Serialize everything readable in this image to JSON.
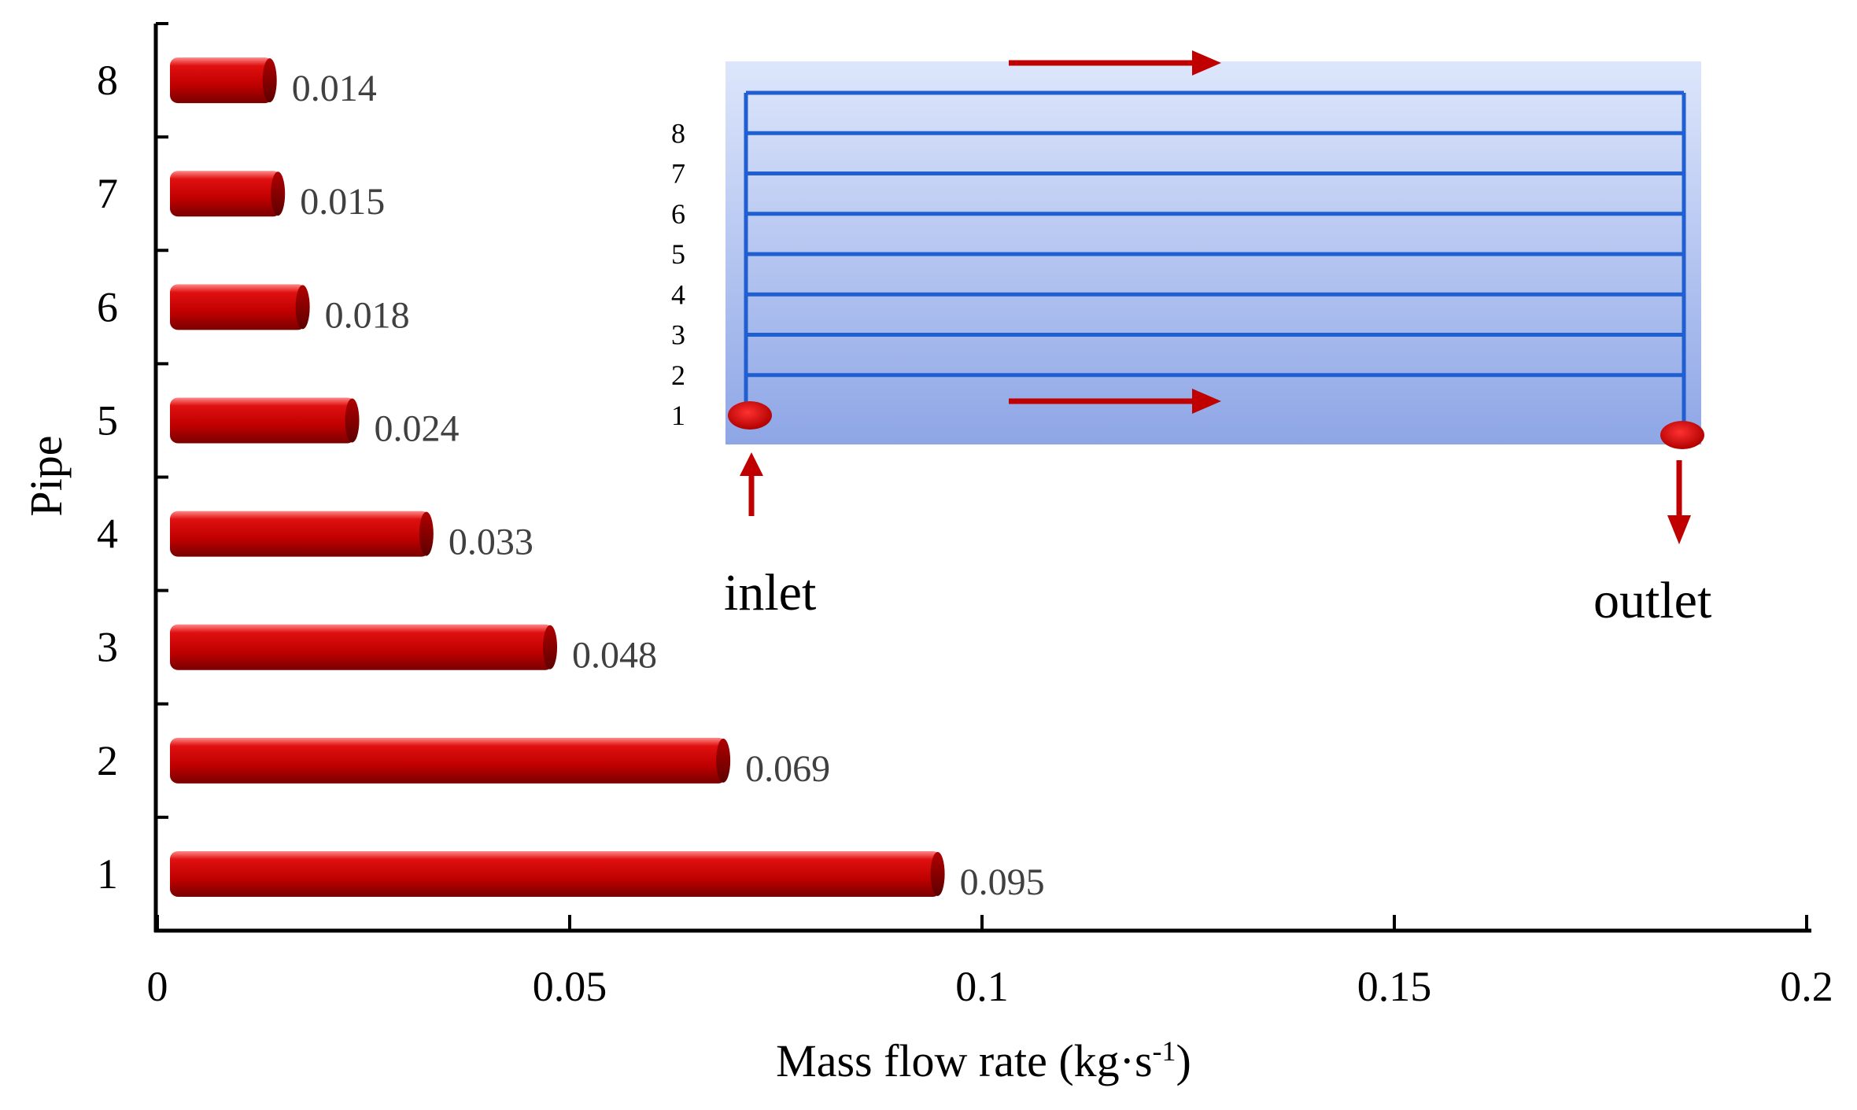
{
  "chart_data": {
    "type": "bar",
    "orientation": "horizontal",
    "categories": [
      "1",
      "2",
      "3",
      "4",
      "5",
      "6",
      "7",
      "8"
    ],
    "values": [
      0.095,
      0.069,
      0.048,
      0.033,
      0.024,
      0.018,
      0.015,
      0.014
    ],
    "data_labels": [
      "0.095",
      "0.069",
      "0.048",
      "0.033",
      "0.024",
      "0.018",
      "0.015",
      "0.014"
    ],
    "xlabel_main": "Mass flow rate (kg·s",
    "xlabel_sup": "-1",
    "xlabel_end": ")",
    "ylabel": "Pipe",
    "xlim": [
      0,
      0.2
    ],
    "xticks": [
      0,
      0.05,
      0.1,
      0.15,
      0.2
    ],
    "xtick_labels": [
      "0",
      "0.05",
      "0.1",
      "0.15",
      "0.2"
    ],
    "grid": false,
    "bar_color": "#c40000"
  },
  "inset": {
    "pipe_labels": [
      "1",
      "2",
      "3",
      "4",
      "5",
      "6",
      "7",
      "8"
    ],
    "inlet_label": "inlet",
    "outlet_label": "outlet",
    "panel_color": "#9fb6ea",
    "pipe_color": "#1f5fd1",
    "arrow_color": "#c00000"
  }
}
